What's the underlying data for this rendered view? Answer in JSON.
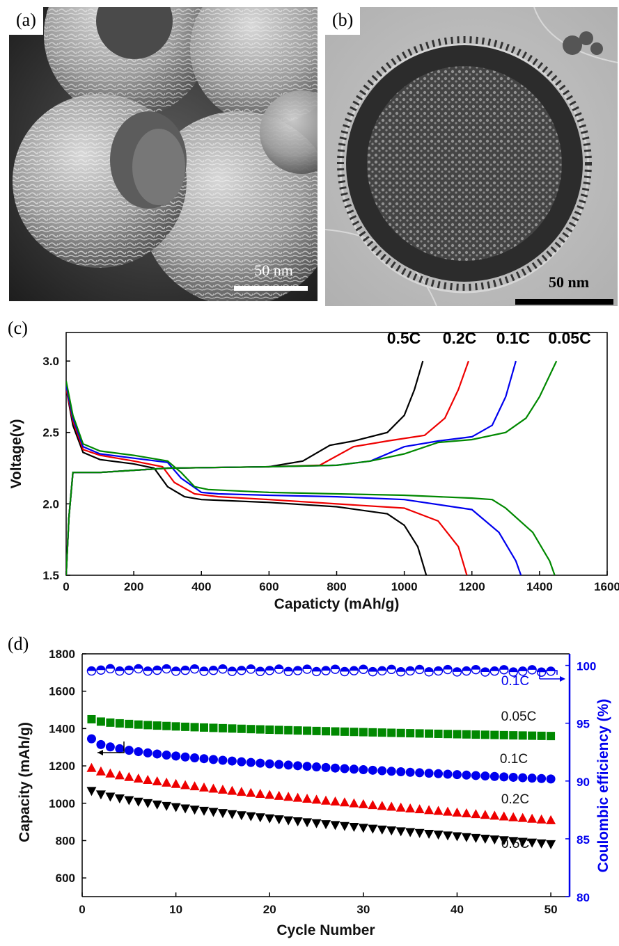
{
  "panels": {
    "a": {
      "label": "(a)",
      "scale_bar": "50 nm"
    },
    "b": {
      "label": "(b)",
      "scale_bar": "50 nm"
    },
    "c": {
      "label": "(c)"
    },
    "d": {
      "label": "(d)"
    }
  },
  "chart_data": [
    {
      "type": "line",
      "panel": "(c)",
      "xlabel": "Capaticty (mAh/g)",
      "ylabel": "Voltage(v)",
      "xlim": [
        0,
        1600
      ],
      "ylim": [
        1.5,
        3.2
      ],
      "xticks": [
        0,
        200,
        400,
        600,
        800,
        1000,
        1200,
        1400,
        1600
      ],
      "yticks": [
        1.5,
        2.0,
        2.5,
        3.0
      ],
      "legend_labels": [
        "0.5C",
        "0.2C",
        "0.1C",
        "0.05C"
      ],
      "series": [
        {
          "name": "0.5C",
          "color": "#000000",
          "discharge": [
            [
              0,
              2.81
            ],
            [
              20,
              2.55
            ],
            [
              50,
              2.36
            ],
            [
              100,
              2.31
            ],
            [
              200,
              2.28
            ],
            [
              260,
              2.25
            ],
            [
              300,
              2.12
            ],
            [
              350,
              2.05
            ],
            [
              400,
              2.03
            ],
            [
              600,
              2.01
            ],
            [
              800,
              1.98
            ],
            [
              950,
              1.93
            ],
            [
              1000,
              1.85
            ],
            [
              1040,
              1.7
            ],
            [
              1065,
              1.5
            ]
          ],
          "charge": [
            [
              0,
              1.5
            ],
            [
              8,
              1.9
            ],
            [
              20,
              2.22
            ],
            [
              100,
              2.22
            ],
            [
              300,
              2.25
            ],
            [
              600,
              2.26
            ],
            [
              700,
              2.3
            ],
            [
              780,
              2.41
            ],
            [
              850,
              2.44
            ],
            [
              950,
              2.5
            ],
            [
              1000,
              2.62
            ],
            [
              1030,
              2.8
            ],
            [
              1055,
              3.0
            ]
          ]
        },
        {
          "name": "0.2C",
          "color": "#ee0000",
          "discharge": [
            [
              0,
              2.81
            ],
            [
              20,
              2.58
            ],
            [
              50,
              2.38
            ],
            [
              100,
              2.34
            ],
            [
              200,
              2.3
            ],
            [
              285,
              2.26
            ],
            [
              320,
              2.15
            ],
            [
              380,
              2.07
            ],
            [
              450,
              2.05
            ],
            [
              600,
              2.03
            ],
            [
              800,
              2.0
            ],
            [
              1000,
              1.97
            ],
            [
              1100,
              1.88
            ],
            [
              1160,
              1.7
            ],
            [
              1185,
              1.5
            ]
          ],
          "charge": [
            [
              0,
              1.5
            ],
            [
              8,
              1.9
            ],
            [
              20,
              2.22
            ],
            [
              100,
              2.22
            ],
            [
              300,
              2.25
            ],
            [
              600,
              2.26
            ],
            [
              750,
              2.27
            ],
            [
              850,
              2.4
            ],
            [
              950,
              2.44
            ],
            [
              1060,
              2.48
            ],
            [
              1120,
              2.6
            ],
            [
              1160,
              2.8
            ],
            [
              1190,
              3.0
            ]
          ]
        },
        {
          "name": "0.1C",
          "color": "#0000ee",
          "discharge": [
            [
              0,
              2.83
            ],
            [
              20,
              2.6
            ],
            [
              50,
              2.4
            ],
            [
              100,
              2.35
            ],
            [
              200,
              2.32
            ],
            [
              300,
              2.29
            ],
            [
              340,
              2.18
            ],
            [
              400,
              2.08
            ],
            [
              450,
              2.07
            ],
            [
              600,
              2.06
            ],
            [
              800,
              2.05
            ],
            [
              1000,
              2.03
            ],
            [
              1200,
              1.96
            ],
            [
              1280,
              1.8
            ],
            [
              1330,
              1.6
            ],
            [
              1345,
              1.5
            ]
          ],
          "charge": [
            [
              0,
              1.5
            ],
            [
              8,
              1.9
            ],
            [
              20,
              2.22
            ],
            [
              100,
              2.22
            ],
            [
              300,
              2.25
            ],
            [
              600,
              2.26
            ],
            [
              800,
              2.27
            ],
            [
              900,
              2.3
            ],
            [
              1000,
              2.4
            ],
            [
              1100,
              2.44
            ],
            [
              1200,
              2.47
            ],
            [
              1260,
              2.55
            ],
            [
              1300,
              2.75
            ],
            [
              1330,
              3.0
            ]
          ]
        },
        {
          "name": "0.05C",
          "color": "#008800",
          "discharge": [
            [
              0,
              2.86
            ],
            [
              20,
              2.62
            ],
            [
              50,
              2.42
            ],
            [
              100,
              2.37
            ],
            [
              200,
              2.34
            ],
            [
              300,
              2.3
            ],
            [
              340,
              2.22
            ],
            [
              380,
              2.12
            ],
            [
              420,
              2.1
            ],
            [
              600,
              2.08
            ],
            [
              800,
              2.07
            ],
            [
              1000,
              2.06
            ],
            [
              1200,
              2.04
            ],
            [
              1260,
              2.03
            ],
            [
              1300,
              1.97
            ],
            [
              1380,
              1.8
            ],
            [
              1430,
              1.6
            ],
            [
              1445,
              1.5
            ]
          ],
          "charge": [
            [
              0,
              1.5
            ],
            [
              8,
              1.9
            ],
            [
              20,
              2.22
            ],
            [
              100,
              2.22
            ],
            [
              300,
              2.25
            ],
            [
              600,
              2.26
            ],
            [
              800,
              2.27
            ],
            [
              900,
              2.3
            ],
            [
              1000,
              2.35
            ],
            [
              1100,
              2.43
            ],
            [
              1200,
              2.45
            ],
            [
              1300,
              2.5
            ],
            [
              1360,
              2.6
            ],
            [
              1400,
              2.75
            ],
            [
              1450,
              3.0
            ]
          ]
        }
      ]
    },
    {
      "type": "scatter",
      "panel": "(d)",
      "xlabel": "Cycle Number",
      "ylabel": "Capacity (mAh/g)",
      "y2label": "Coulombic efficiency (%)",
      "xlim": [
        0,
        52
      ],
      "ylim": [
        500,
        1800
      ],
      "y2lim": [
        80,
        101
      ],
      "xticks": [
        0,
        10,
        20,
        30,
        40,
        50
      ],
      "yticks": [
        600,
        800,
        1000,
        1200,
        1400,
        1600,
        1800
      ],
      "y2ticks": [
        80,
        85,
        90,
        95,
        100
      ],
      "series": [
        {
          "name": "0.05C",
          "marker": "square",
          "color": "#008800",
          "axis": "left",
          "start": 1450,
          "end": 1360,
          "curve": 0.5
        },
        {
          "name": "0.1C",
          "marker": "circle",
          "color": "#0000ee",
          "axis": "left",
          "start": 1345,
          "end": 1130,
          "curve": 0.5
        },
        {
          "name": "0.2C",
          "marker": "triangle-up",
          "color": "#ee0000",
          "axis": "left",
          "start": 1190,
          "end": 910,
          "curve": 0.7
        },
        {
          "name": "0.5C",
          "marker": "triangle-down",
          "color": "#000000",
          "axis": "left",
          "start": 1065,
          "end": 780,
          "curve": 0.7
        },
        {
          "name": "0.1C",
          "marker": "half-circle",
          "color": "#0000ee",
          "axis": "right",
          "start": 99.6,
          "end": 99.5,
          "curve": 1
        }
      ],
      "series_labels": [
        "0.05C",
        "0.1C",
        "0.2C",
        "0.5C",
        "0.1C"
      ]
    }
  ]
}
